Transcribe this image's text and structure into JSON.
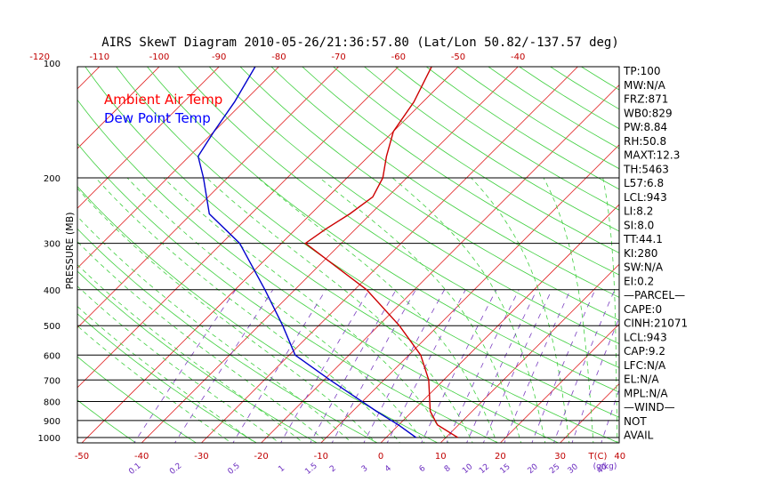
{
  "chart_data": {
    "type": "line",
    "title": "AIRS SkewT Diagram 2010-05-26/21:36:57.80 (Lat/Lon 50.82/-137.57 deg)",
    "ylabel": "PRESSURE (MB)",
    "xlabel_bottom": "T(C)",
    "mixing_ratio_unit": "(g/kg)",
    "pressure_ticks": [
      100,
      200,
      300,
      400,
      500,
      600,
      700,
      800,
      900,
      1000
    ],
    "top_ticks": [
      -120,
      -110,
      -100,
      -90,
      -80,
      -70,
      -60,
      -50,
      -40
    ],
    "bottom_ticks": [
      -50,
      -40,
      -30,
      -20,
      -10,
      0,
      10,
      20,
      30,
      40
    ],
    "mixing_ratio_labels": [
      "0.1",
      "0.2",
      "0.5",
      "1",
      "1.5",
      "2",
      "3",
      "4",
      "6",
      "8",
      "10",
      "12",
      "15",
      "20",
      "25",
      "30",
      "40"
    ],
    "legend": [
      {
        "name": "Ambient Air Temp",
        "color": "#ff0000"
      },
      {
        "name": "Dew Point Temp",
        "color": "#0000ff"
      }
    ],
    "series": [
      {
        "name": "Ambient Air Temp",
        "color": "#cc0000",
        "points": [
          {
            "p": 1000,
            "t": 12.0
          },
          {
            "p": 925,
            "t": 6.5
          },
          {
            "p": 850,
            "t": 3.0
          },
          {
            "p": 700,
            "t": -2.5
          },
          {
            "p": 600,
            "t": -8.0
          },
          {
            "p": 500,
            "t": -16.5
          },
          {
            "p": 400,
            "t": -28.0
          },
          {
            "p": 300,
            "t": -46.0
          },
          {
            "p": 275,
            "t": -45.0
          },
          {
            "p": 250,
            "t": -43.5
          },
          {
            "p": 225,
            "t": -42.5
          },
          {
            "p": 200,
            "t": -44.0
          },
          {
            "p": 175,
            "t": -47.0
          },
          {
            "p": 150,
            "t": -50.0
          },
          {
            "p": 125,
            "t": -51.5
          },
          {
            "p": 100,
            "t": -54.5
          }
        ]
      },
      {
        "name": "Dew Point Temp",
        "color": "#0000cc",
        "points": [
          {
            "p": 1000,
            "t": 5.0
          },
          {
            "p": 925,
            "t": 0.0
          },
          {
            "p": 850,
            "t": -6.0
          },
          {
            "p": 700,
            "t": -19.0
          },
          {
            "p": 600,
            "t": -29.0
          },
          {
            "p": 500,
            "t": -36.0
          },
          {
            "p": 400,
            "t": -45.0
          },
          {
            "p": 300,
            "t": -57.0
          },
          {
            "p": 250,
            "t": -67.0
          },
          {
            "p": 200,
            "t": -74.0
          },
          {
            "p": 175,
            "t": -78.5
          },
          {
            "p": 150,
            "t": -80.0
          },
          {
            "p": 125,
            "t": -81.5
          },
          {
            "p": 100,
            "t": -84.0
          }
        ]
      }
    ]
  },
  "indices": [
    "TP:100",
    "MW:N/A",
    "FRZ:871",
    "WB0:829",
    "PW:8.84",
    "RH:50.8",
    "MAXT:12.3",
    "TH:5463",
    "L57:6.8",
    "LCL:943",
    "LI:8.2",
    "SI:8.0",
    "TT:44.1",
    "KI:280",
    "SW:N/A",
    "EI:0.2",
    "—PARCEL—",
    "CAPE:0",
    "CINH:21071",
    "LCL:943",
    "CAP:9.2",
    "LFC:N/A",
    "EL:N/A",
    "MPL:N/A",
    "—WIND—",
    "NOT",
    "AVAIL"
  ]
}
